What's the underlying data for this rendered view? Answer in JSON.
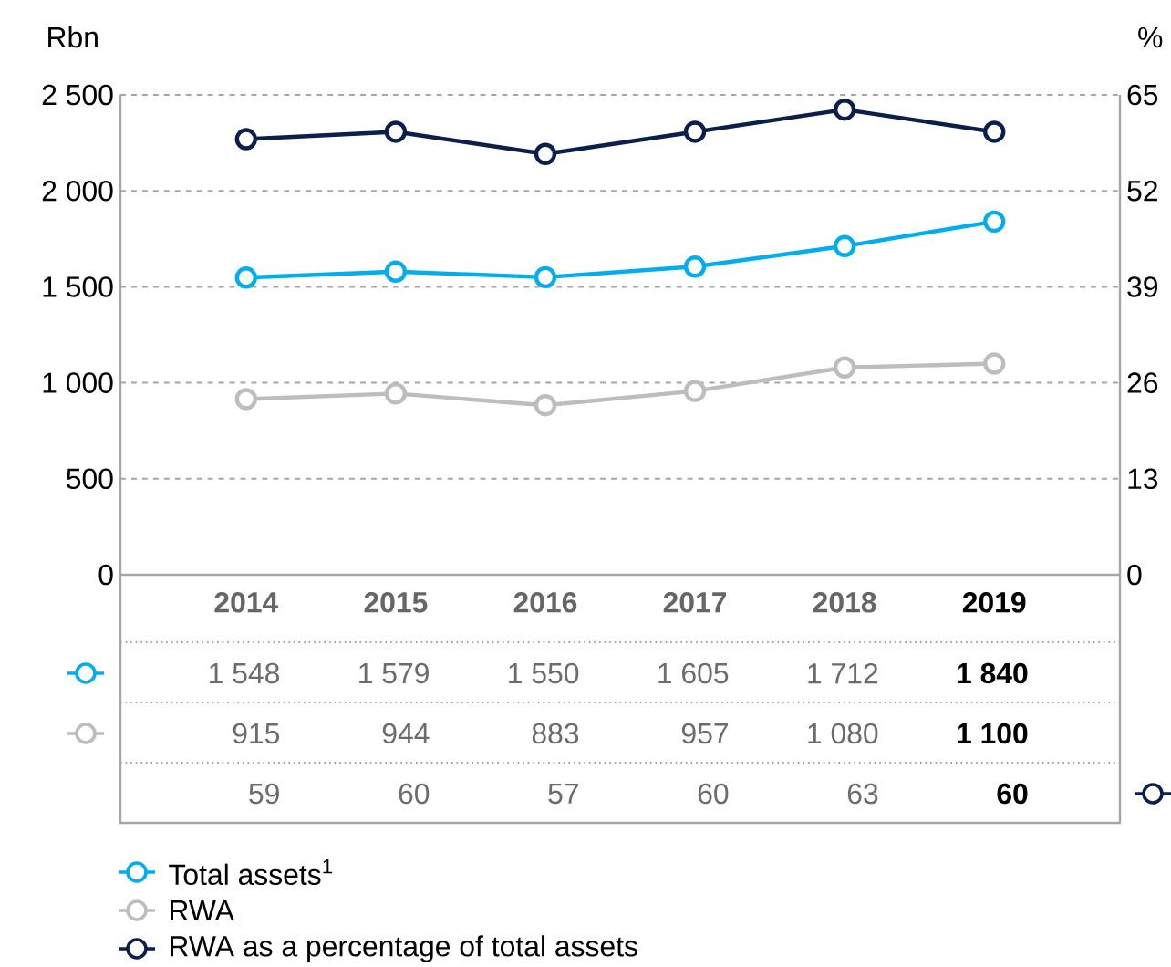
{
  "chart_data": {
    "type": "line",
    "ylabel": "Rbn",
    "y2label": "%",
    "categories": [
      "2014",
      "2015",
      "2016",
      "2017",
      "2018",
      "2019"
    ],
    "series": [
      {
        "name": "Total assets$^{1}$",
        "color": "#00aeef",
        "values": [
          1548,
          1579,
          1550,
          1605,
          1712,
          1840
        ],
        "value_labels": [
          "1 548",
          "1 579",
          "1 550",
          "1 605",
          "1 712",
          "1 840"
        ]
      },
      {
        "name": "RWA",
        "color": "#bdbdbd",
        "values": [
          915,
          944,
          883,
          957,
          1080,
          1100
        ],
        "value_labels": [
          "915",
          "944",
          "883",
          "957",
          "1 080",
          "1 100"
        ]
      },
      {
        "name": "RWA as a percentage of total assets",
        "color": "#0b1f4d",
        "axis": "y2",
        "values": [
          59,
          60,
          57,
          60,
          63,
          60
        ],
        "value_labels": [
          "59",
          "60",
          "57",
          "60",
          "63",
          "60"
        ]
      }
    ],
    "ylim": [
      0,
      2500
    ],
    "yticks": [
      0,
      500,
      {
        "value": 1000,
        "label": "1 000"
      },
      {
        "value": 1500,
        "label": "1 500"
      },
      {
        "value": 2000,
        "label": "2 000"
      },
      {
        "value": 2500,
        "label": "2 500"
      }
    ],
    "y2lim": [
      0,
      65
    ],
    "y2ticks": [
      0,
      13,
      26,
      39,
      52,
      65
    ],
    "grid": "y",
    "legend": "bottom",
    "marker": "circle",
    "line_style": "solid"
  }
}
